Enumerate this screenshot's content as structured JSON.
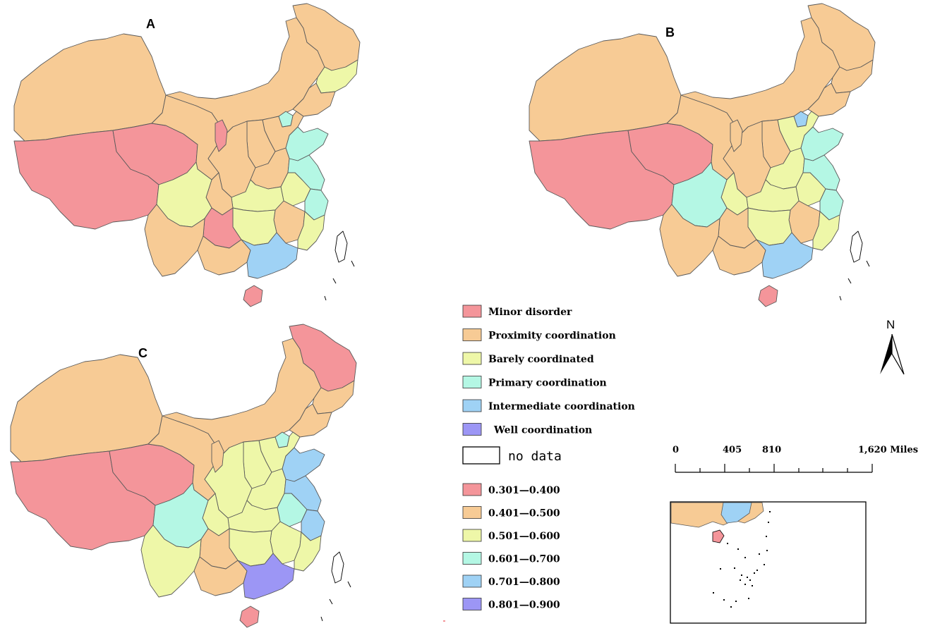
{
  "colors": {
    "minor_disorder": "#f4959a",
    "proximity": "#f7cb95",
    "barely": "#eef7a8",
    "primary": "#b4f7e4",
    "intermediate": "#9fd2f5",
    "well": "#9c96f5",
    "border": "#5a5a5a"
  },
  "panels": [
    {
      "label": "A",
      "regions": {
        "xinjiang": "proximity",
        "tibet": "minor_disorder",
        "qinghai": "minor_disorder",
        "gansu": "proximity",
        "inner_mongolia": "proximity",
        "heilongjiang": "proximity",
        "jilin": "barely",
        "liaoning": "proximity",
        "beijing": "primary",
        "hebei": "proximity",
        "shandong": "primary",
        "jiangsu": "primary",
        "zhejiang": "primary",
        "fujian": "barely",
        "guangdong": "intermediate",
        "guangxi": "proximity",
        "yunnan": "proximity",
        "sichuan": "barely",
        "guizhou": "minor_disorder",
        "chongqing": "proximity",
        "hunan": "barely",
        "jiangxi": "proximity",
        "hubei": "barely",
        "henan": "proximity",
        "shaanxi": "proximity",
        "shanxi": "proximity",
        "ningxia": "minor_disorder",
        "anhui": "barely",
        "hainan": "minor_disorder",
        "taiwan": "none"
      }
    },
    {
      "label": "B",
      "regions": {
        "xinjiang": "proximity",
        "tibet": "minor_disorder",
        "qinghai": "minor_disorder",
        "gansu": "proximity",
        "inner_mongolia": "proximity",
        "heilongjiang": "proximity",
        "jilin": "proximity",
        "liaoning": "proximity",
        "beijing": "intermediate",
        "hebei": "barely",
        "shandong": "primary",
        "jiangsu": "primary",
        "zhejiang": "primary",
        "fujian": "barely",
        "guangdong": "intermediate",
        "guangxi": "proximity",
        "yunnan": "proximity",
        "sichuan": "primary",
        "guizhou": "proximity",
        "chongqing": "barely",
        "hunan": "barely",
        "jiangxi": "proximity",
        "hubei": "barely",
        "henan": "barely",
        "shaanxi": "proximity",
        "shanxi": "proximity",
        "ningxia": "proximity",
        "anhui": "barely",
        "hainan": "minor_disorder",
        "taiwan": "none"
      }
    },
    {
      "label": "C",
      "regions": {
        "xinjiang": "proximity",
        "tibet": "minor_disorder",
        "qinghai": "minor_disorder",
        "gansu": "proximity",
        "inner_mongolia": "proximity",
        "heilongjiang": "minor_disorder",
        "jilin": "proximity",
        "liaoning": "proximity",
        "beijing": "primary",
        "hebei": "barely",
        "shandong": "intermediate",
        "jiangsu": "intermediate",
        "zhejiang": "intermediate",
        "fujian": "barely",
        "guangdong": "well",
        "guangxi": "proximity",
        "yunnan": "barely",
        "sichuan": "primary",
        "guizhou": "proximity",
        "chongqing": "barely",
        "hunan": "barely",
        "jiangxi": "barely",
        "hubei": "barely",
        "henan": "barely",
        "shaanxi": "barely",
        "shanxi": "barely",
        "ningxia": "proximity",
        "anhui": "primary",
        "hainan": "minor_disorder",
        "taiwan": "none"
      }
    }
  ],
  "legend_classes": [
    {
      "key": "minor_disorder",
      "label": "Minor disorder"
    },
    {
      "key": "proximity",
      "label": "Proximity coordination"
    },
    {
      "key": "barely",
      "label": "Barely coordinated"
    },
    {
      "key": "primary",
      "label": "Primary coordination"
    },
    {
      "key": "intermediate",
      "label": "Intermediate coordination"
    },
    {
      "key": "well",
      "label": "Well coordination"
    }
  ],
  "legend_nodata": "no data",
  "legend_ranges": [
    {
      "key": "minor_disorder",
      "label": "0.301—0.400"
    },
    {
      "key": "proximity",
      "label": "0.401—0.500"
    },
    {
      "key": "barely",
      "label": "0.501—0.600"
    },
    {
      "key": "primary",
      "label": "0.601—0.700"
    },
    {
      "key": "intermediate",
      "label": "0.701—0.800"
    },
    {
      "key": "well",
      "label": "0.801—0.900"
    }
  ],
  "north_label": "N",
  "scale_bar": {
    "ticks": [
      "0",
      "405",
      "810",
      "1,620 Miles"
    ]
  }
}
